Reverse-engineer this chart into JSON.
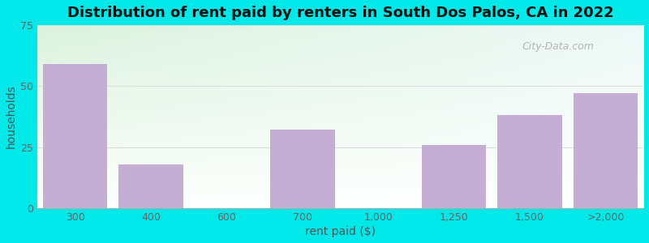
{
  "categories": [
    "300",
    "400",
    "600",
    "700",
    "1,000",
    "1,250",
    "1,500",
    ">2,000"
  ],
  "values": [
    59,
    18,
    0,
    32,
    0,
    26,
    38,
    47
  ],
  "bar_color": "#c4aed4",
  "title": "Distribution of rent paid by renters in South Dos Palos, CA in 2022",
  "xlabel": "rent paid ($)",
  "ylabel": "households",
  "ylim": [
    0,
    75
  ],
  "yticks": [
    0,
    25,
    50,
    75
  ],
  "outer_bg": "#00e8e8",
  "inner_bg_top_left": "#dff0dc",
  "inner_bg_right": "#f0faf8",
  "inner_bg_bottom": "#ffffff",
  "grid_color": "#dddddd",
  "title_fontsize": 13,
  "label_fontsize": 10,
  "tick_fontsize": 9,
  "watermark": "City-Data.com"
}
